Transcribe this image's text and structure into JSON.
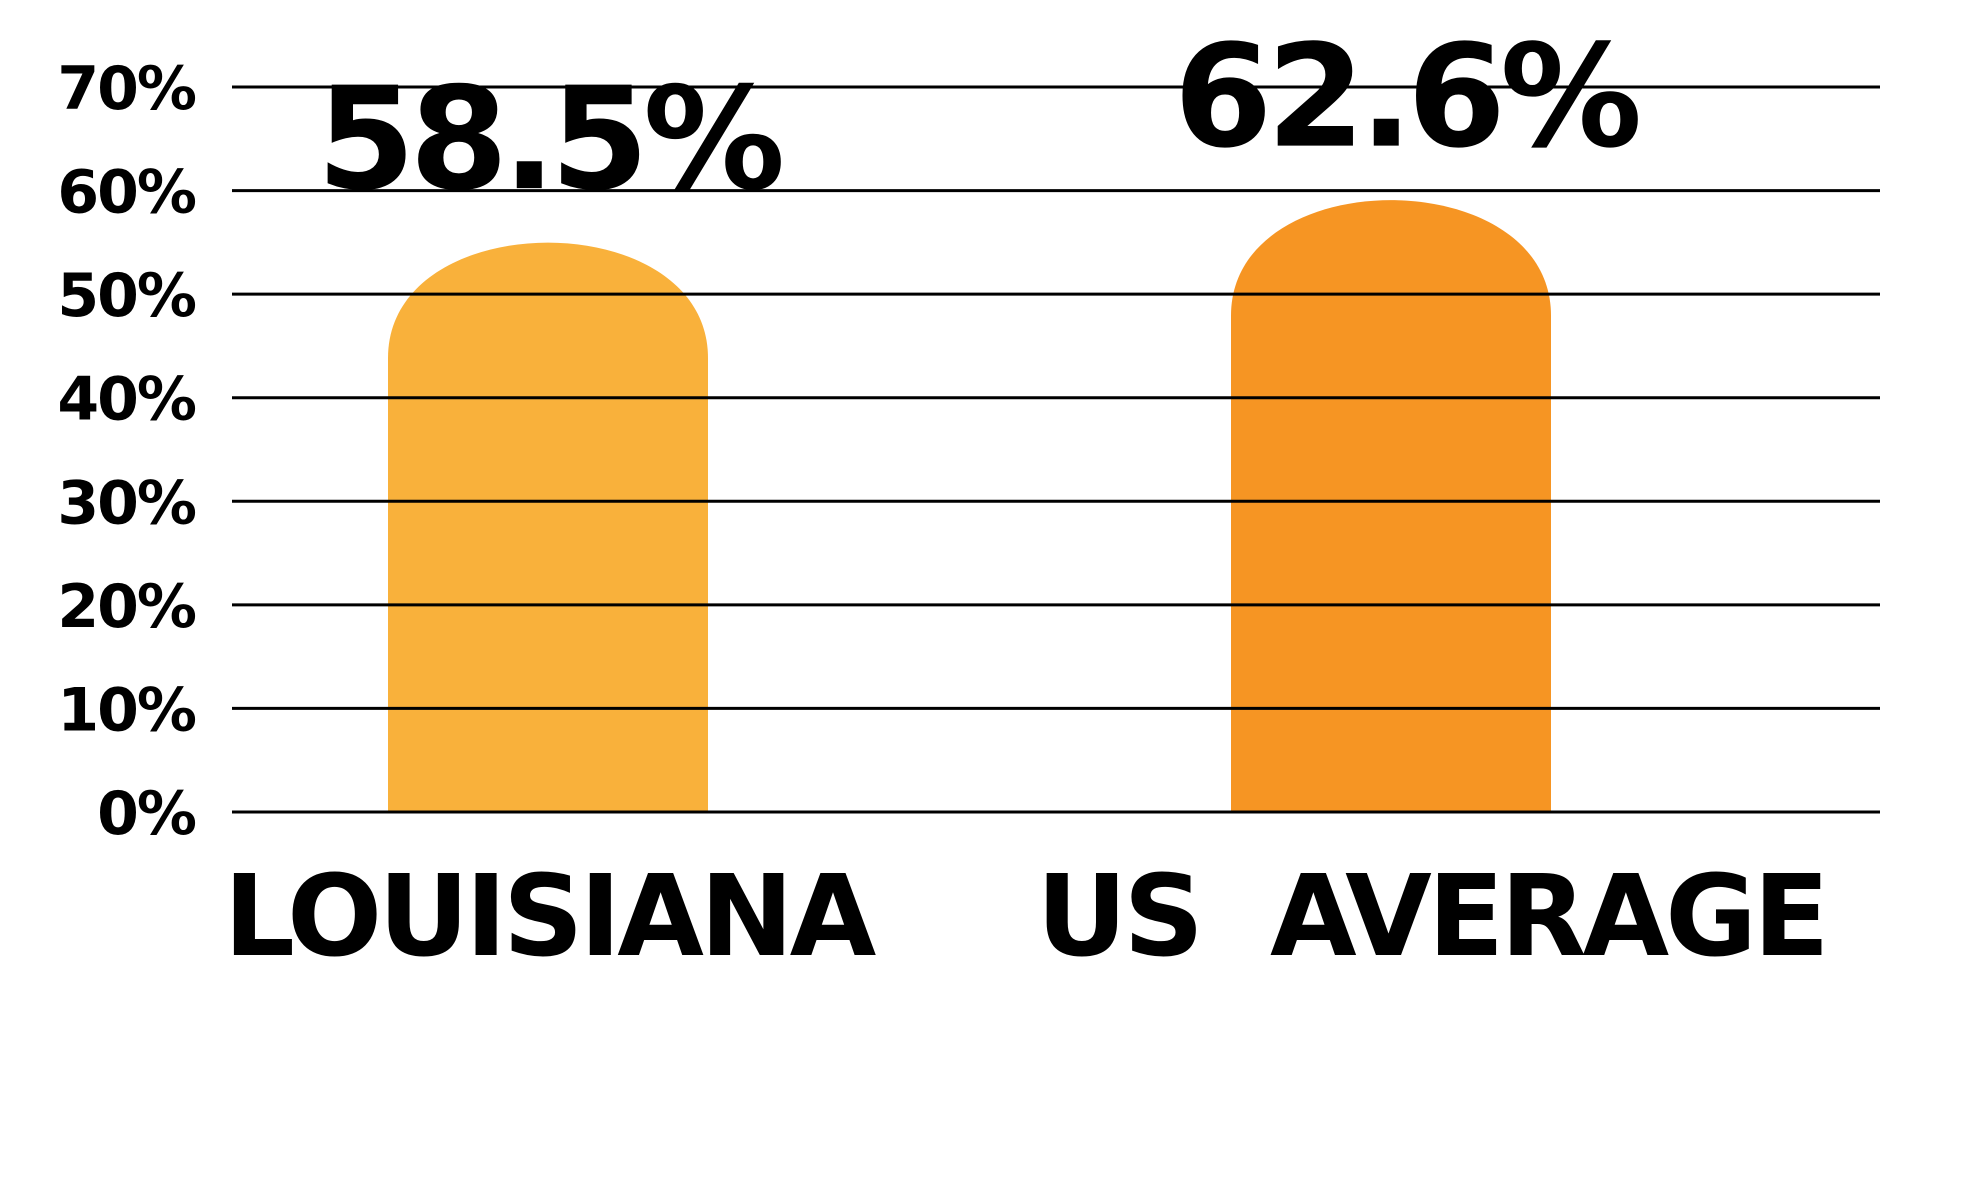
{
  "chart_data": {
    "type": "bar",
    "categories": [
      "LOUISIANA",
      "US  AVERAGE"
    ],
    "values": [
      58.5,
      62.6
    ],
    "value_labels": [
      "58.5%",
      "62.6%"
    ],
    "y_ticks": [
      "0%",
      "10%",
      "20%",
      "30%",
      "40%",
      "50%",
      "60%",
      "70%"
    ],
    "ylim": [
      0,
      70
    ],
    "grid": true,
    "colors": [
      "#f9b13b",
      "#f69523"
    ]
  }
}
